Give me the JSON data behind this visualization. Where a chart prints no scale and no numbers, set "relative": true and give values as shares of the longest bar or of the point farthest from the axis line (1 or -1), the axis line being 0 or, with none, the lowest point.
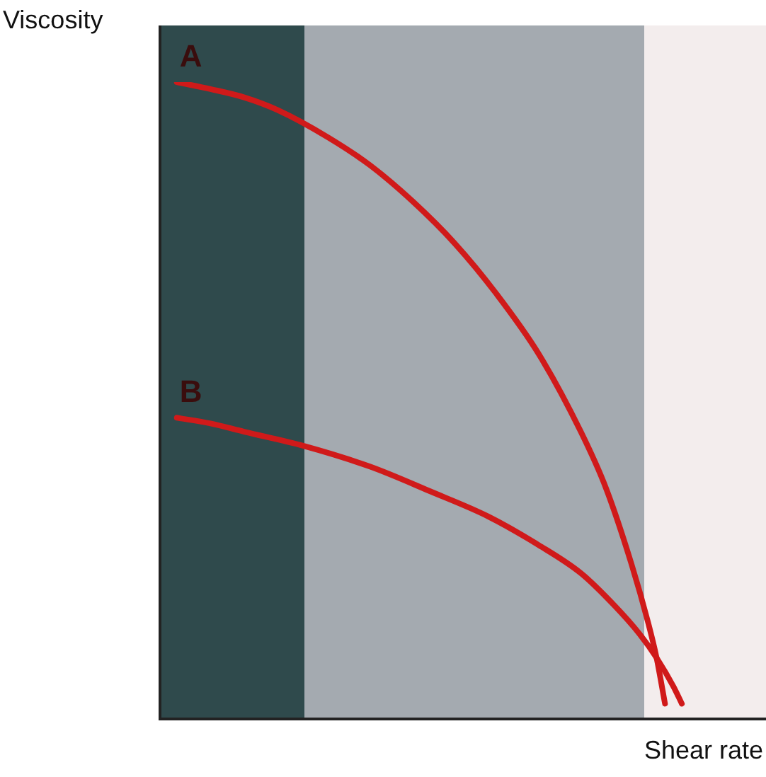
{
  "chart_data": {
    "type": "line",
    "relative": true,
    "xlabel": "Shear rate",
    "ylabel": "Viscosity",
    "legend": false,
    "marker": "none",
    "line_style": "solid",
    "categories": [
      null,
      null,
      null,
      null,
      null,
      null,
      null,
      null,
      null,
      null,
      null,
      null,
      null,
      null,
      null,
      null,
      null,
      null,
      null,
      null,
      null,
      null,
      null,
      null,
      null,
      null,
      null,
      null,
      null,
      null,
      null,
      null,
      null,
      null,
      null,
      null,
      null,
      null,
      null,
      null,
      null,
      null,
      null,
      null,
      null,
      null,
      null,
      null,
      null,
      null,
      null,
      null,
      null,
      null,
      null,
      null,
      null,
      null,
      null,
      null,
      null,
      null,
      null,
      null,
      null,
      null,
      null,
      null,
      null,
      null,
      null,
      null,
      null
    ],
    "series": [
      {
        "name": "A",
        "color": "#d01a1a",
        "values": [
          null,
          null,
          1.0,
          null,
          null,
          null,
          0.989,
          null,
          null,
          null,
          0.976,
          null,
          null,
          null,
          0.956,
          null,
          null,
          null,
          null,
          null,
          0.913,
          null,
          null,
          null,
          null,
          0.869,
          null,
          null,
          null,
          null,
          0.813,
          null,
          null,
          null,
          null,
          0.747,
          null,
          null,
          null,
          null,
          0.667,
          null,
          null,
          null,
          null,
          0.573,
          null,
          null,
          null,
          null,
          0.451,
          null,
          null,
          0.362,
          null,
          null,
          0.244,
          null,
          0.151,
          0.096,
          0.024,
          null,
          null,
          null,
          null,
          null,
          null,
          null,
          null,
          null,
          null,
          null,
          null
        ]
      },
      {
        "name": "B",
        "color": "#d01a1a",
        "values": [
          null,
          null,
          0.473,
          null,
          null,
          null,
          0.464,
          null,
          null,
          null,
          0.451,
          null,
          null,
          null,
          null,
          null,
          null,
          0.429,
          null,
          null,
          null,
          null,
          null,
          null,
          null,
          0.396,
          null,
          null,
          null,
          null,
          null,
          null,
          0.358,
          null,
          null,
          null,
          null,
          null,
          null,
          0.318,
          null,
          null,
          null,
          null,
          null,
          0.273,
          null,
          null,
          null,
          null,
          0.229,
          null,
          null,
          null,
          0.178,
          null,
          null,
          0.133,
          null,
          0.096,
          null,
          0.051,
          0.024,
          null,
          null,
          null,
          null,
          null,
          null,
          null,
          null,
          null,
          null
        ]
      }
    ]
  }
}
